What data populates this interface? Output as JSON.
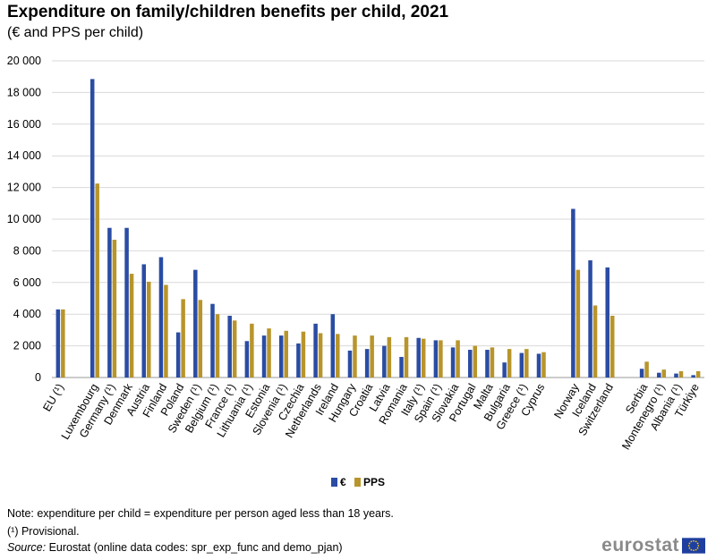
{
  "title": "Expenditure on family/children benefits per child, 2021",
  "subtitle": "(€ and PPS per child)",
  "colors": {
    "eur": "#2a4ca3",
    "pps": "#b8952c",
    "grid": "#d9d9d9",
    "axis": "#999999",
    "logo_grey": "#8a8a8a",
    "eu_blue": "#1e3fa0",
    "eu_gold": "#ffcc00"
  },
  "chart_data": {
    "type": "bar",
    "title": "Expenditure on family/children benefits per child, 2021",
    "xlabel": "",
    "ylabel": "",
    "ylim": [
      0,
      20000
    ],
    "yticks": [
      0,
      2000,
      4000,
      6000,
      8000,
      10000,
      12000,
      14000,
      16000,
      18000,
      20000
    ],
    "ytick_labels": [
      "0",
      "2 000",
      "4 000",
      "6 000",
      "8 000",
      "10 000",
      "12 000",
      "14 000",
      "16 000",
      "18 000",
      "20 000"
    ],
    "grid": true,
    "legend_position": "bottom-center",
    "categories": [
      "EU (¹)",
      "",
      "Luxembourg",
      "Germany (¹)",
      "Denmark",
      "Austria",
      "Finland",
      "Poland",
      "Sweden (¹)",
      "Belgium (¹)",
      "France (¹)",
      "Lithuania (¹)",
      "Estonia",
      "Slovenia (¹)",
      "Czechia",
      "Netherlands",
      "Ireland",
      "Hungary",
      "Croatia",
      "Latvia",
      "Romania",
      "Italy (¹)",
      "Spain (¹)",
      "Slovakia",
      "Portugal",
      "Malta",
      "Bulgaria",
      "Greece (¹)",
      "Cyprus",
      "",
      "Norway",
      "Iceland",
      "Switzerland",
      "",
      "Serbia",
      "Montenegro (¹)",
      "Albania (¹)",
      "Türkiye"
    ],
    "series": [
      {
        "name": "€",
        "values": [
          4300,
          null,
          18850,
          9450,
          9450,
          7150,
          7600,
          2850,
          6800,
          4650,
          3900,
          2300,
          2650,
          2650,
          2150,
          3400,
          4000,
          1700,
          1800,
          2000,
          1300,
          2500,
          2350,
          1900,
          1750,
          1750,
          950,
          1550,
          1500,
          null,
          10650,
          7400,
          6950,
          null,
          550,
          300,
          250,
          150
        ]
      },
      {
        "name": "PPS",
        "values": [
          4300,
          null,
          12250,
          8700,
          6550,
          6050,
          5850,
          4950,
          4900,
          4000,
          3600,
          3400,
          3100,
          2950,
          2900,
          2800,
          2750,
          2650,
          2650,
          2550,
          2550,
          2450,
          2350,
          2350,
          2000,
          1900,
          1800,
          1800,
          1600,
          null,
          6800,
          4550,
          3900,
          null,
          1000,
          500,
          400,
          400
        ]
      }
    ]
  },
  "legend": {
    "eur": "€",
    "pps": "PPS"
  },
  "notes": {
    "note": "Note: expenditure per child = expenditure per person aged less than 18 years.",
    "provisional": "(¹) Provisional.",
    "source_label": "Source:",
    "source_text": " Eurostat (online data codes: spr_exp_func and demo_pjan)"
  },
  "logo": {
    "text": "eurostat"
  }
}
